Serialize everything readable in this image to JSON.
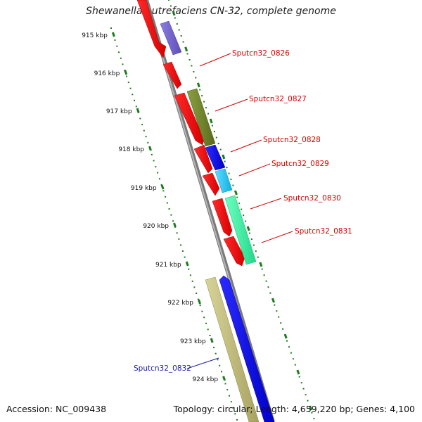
{
  "header": {
    "title": "Shewanella putrefaciens CN-32, complete genome"
  },
  "footer": {
    "accession": "Accession: NC_009438",
    "topology": "Topology: circular; Length: 4,659,220 bp; Genes: 4,100"
  },
  "ruler": {
    "ticks": [
      "915 kbp",
      "916 kbp",
      "917 kbp",
      "918 kbp",
      "919 kbp",
      "920 kbp",
      "921 kbp",
      "922 kbp",
      "923 kbp",
      "924 kbp"
    ],
    "tick_color": "#1f7a1f"
  },
  "backbone_color": "#8a8a8a",
  "genes": [
    {
      "name": "Sputcn32_0826",
      "label_color": "#d40000",
      "strand": "+"
    },
    {
      "name": "Sputcn32_0827",
      "label_color": "#d40000",
      "strand": "+"
    },
    {
      "name": "Sputcn32_0828",
      "label_color": "#d40000",
      "strand": "+"
    },
    {
      "name": "Sputcn32_0829",
      "label_color": "#d40000",
      "strand": "+"
    },
    {
      "name": "Sputcn32_0830",
      "label_color": "#d40000",
      "strand": "+"
    },
    {
      "name": "Sputcn32_0831",
      "label_color": "#d40000",
      "strand": "+"
    },
    {
      "name": "Sputcn32_0832",
      "label_color": "#1a1aa8",
      "strand": "-"
    }
  ]
}
